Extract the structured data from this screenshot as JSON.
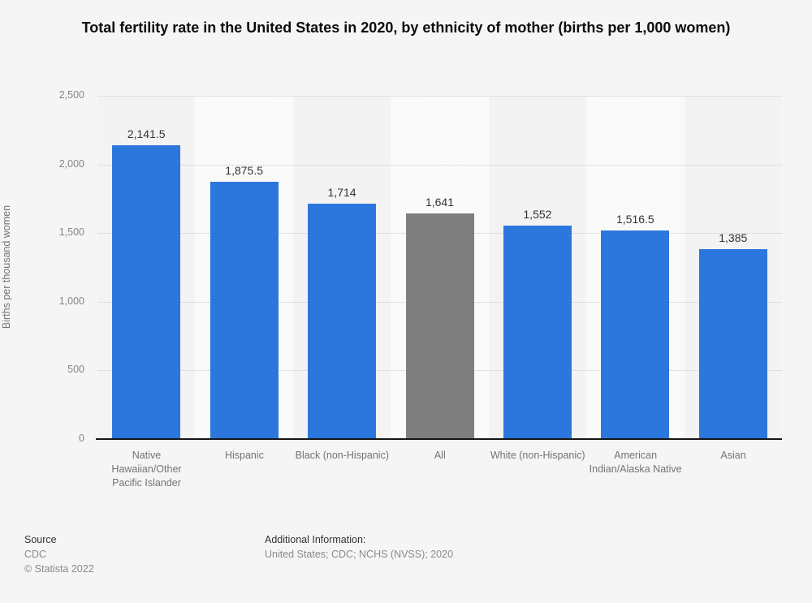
{
  "title": "Total fertility rate in the United States in 2020, by ethnicity of mother (births per 1,000 women)",
  "chart_data": {
    "type": "bar",
    "title": "Total fertility rate in the United States in 2020, by ethnicity of mother (births per 1,000 women)",
    "categories": [
      "Native Hawaiian/Other Pacific Islander",
      "Hispanic",
      "Black (non-Hispanic)",
      "All",
      "White (non-Hispanic)",
      "American Indian/Alaska Native",
      "Asian"
    ],
    "values": [
      2141.5,
      1875.5,
      1714,
      1641,
      1552,
      1516.5,
      1385
    ],
    "value_labels": [
      "2,141.5",
      "1,875.5",
      "1,714",
      "1,641",
      "1,552",
      "1,516.5",
      "1,385"
    ],
    "bar_colors": [
      "#2b77dd",
      "#2b77dd",
      "#2b77dd",
      "#7f7f7f",
      "#2b77dd",
      "#2b77dd",
      "#2b77dd"
    ],
    "xlabel": "",
    "ylabel": "Births per thousand women",
    "ylim": [
      0,
      2500
    ],
    "ytick_labels": [
      "0",
      "500",
      "1,000",
      "1,500",
      "2,000",
      "2,500"
    ],
    "grid": "horizontal-dotted",
    "legend": "none"
  },
  "colors": {
    "bar_blue": "#2b77dd",
    "bar_gray": "#7f7f7f",
    "background": "#f5f5f5",
    "stripe_dark": "#f3f3f3",
    "stripe_light": "#fafafa",
    "axis_line": "#161616",
    "gridline": "#c9c9c9",
    "text_dark": "#333333",
    "text_gray": "#8a8a8a"
  },
  "footer": {
    "source_label": "Source",
    "source_value": "CDC",
    "copyright": "© Statista 2022",
    "additional_label": "Additional Information:",
    "additional_value": "United States; CDC; NCHS (NVSS); 2020"
  }
}
